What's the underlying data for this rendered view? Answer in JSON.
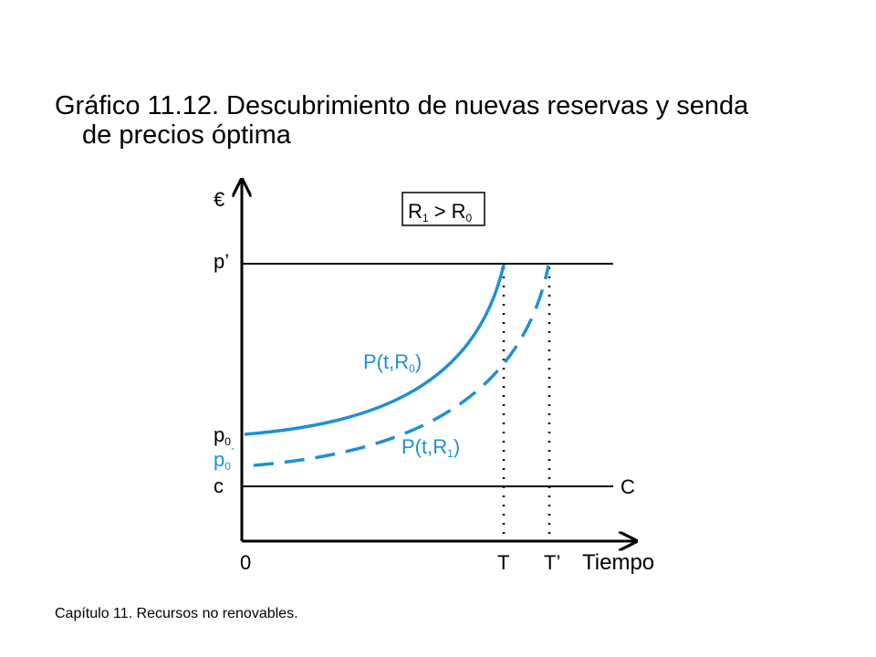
{
  "title": {
    "line1": "Gráfico 11.12. Descubrimiento de nuevas reservas y senda",
    "line2": "de precios óptima"
  },
  "footer": "Capítulo 11. Recursos no renovables.",
  "diagram": {
    "y_axis_label": "€",
    "x_axis_label": "Tiempo",
    "origin_label": "0",
    "box_label": {
      "a": "R",
      "a_sub": "1",
      "op": " > ",
      "b": "R",
      "b_sub": "0"
    },
    "y_labels": {
      "p_prime": "p’",
      "p0": "p",
      "p0_sub": "0",
      "p0_prime": "p",
      "p0_prime_sub": "0",
      "p0_prime_mark": "`",
      "c": "c"
    },
    "x_labels": {
      "T": "T",
      "T_prime": "T’"
    },
    "line_label_C": "C",
    "curve_labels": {
      "r0": {
        "pre": "P(t,R",
        "sub": "0",
        "post": ")"
      },
      "r1": {
        "pre": "P(t,R",
        "sub": "1",
        "post": ")"
      }
    },
    "colors": {
      "curve": "#1e90d6",
      "axis": "#000000"
    }
  }
}
